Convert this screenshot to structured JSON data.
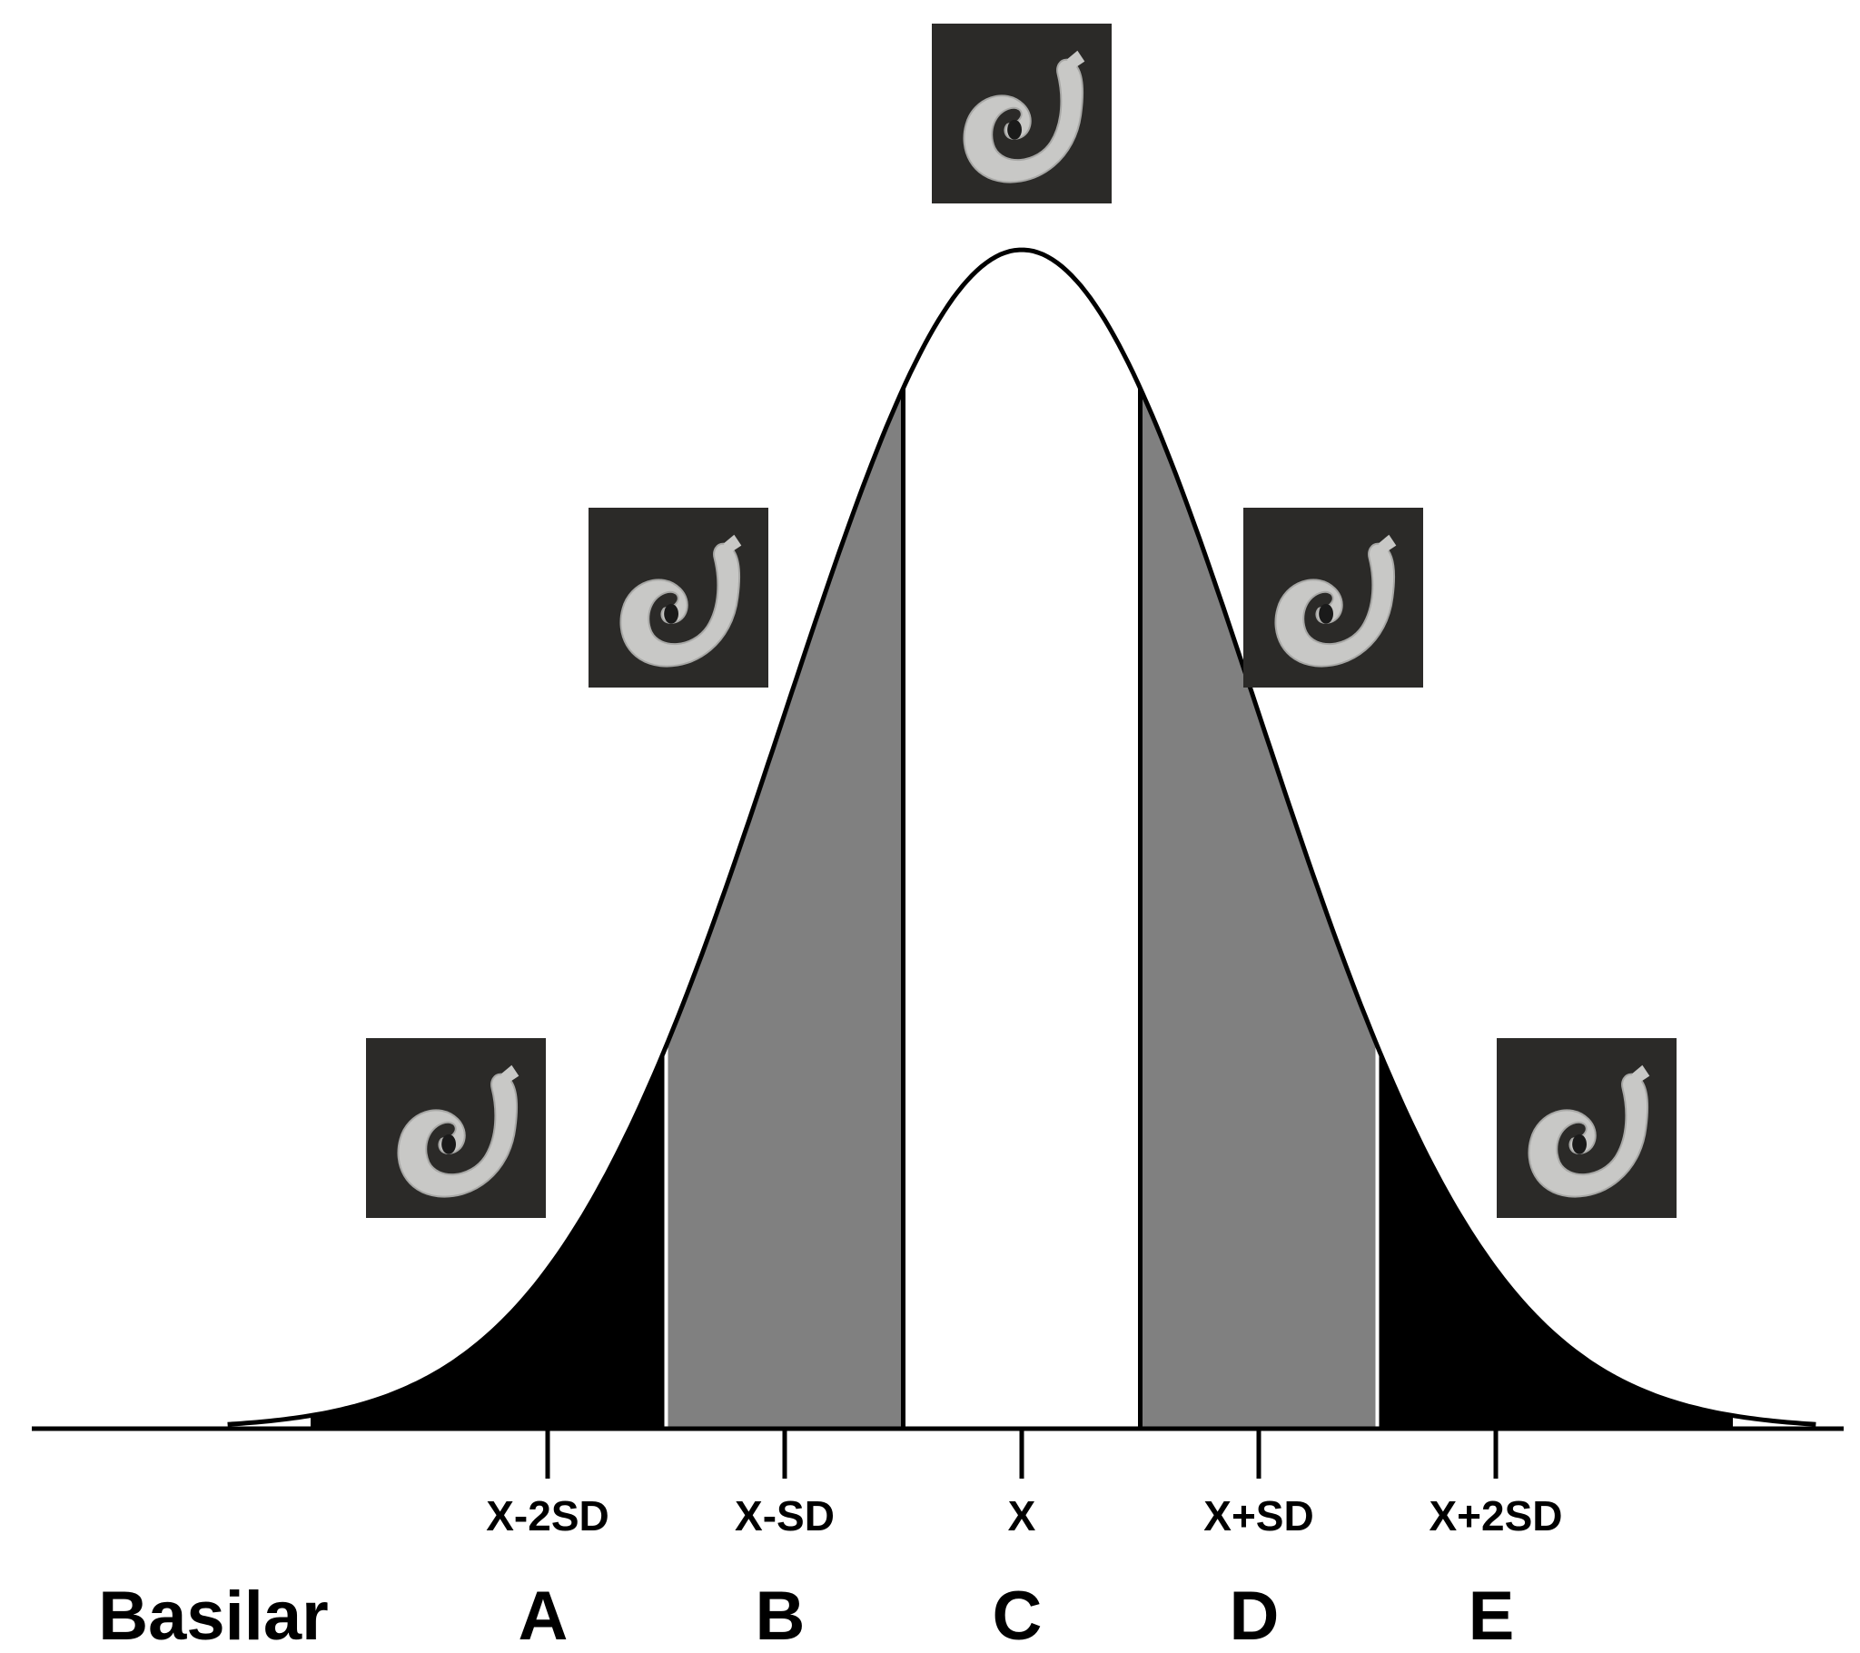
{
  "diagram": {
    "row_label": "Basilar",
    "ticks": [
      {
        "id": "x-minus-2sd",
        "label": "X-2SD",
        "z": -2
      },
      {
        "id": "x-minus-sd",
        "label": "X-SD",
        "z": -1
      },
      {
        "id": "x-mean",
        "label": "X",
        "z": 0
      },
      {
        "id": "x-plus-sd",
        "label": "X+SD",
        "z": 1
      },
      {
        "id": "x-plus-2sd",
        "label": "X+2SD",
        "z": 2
      }
    ],
    "zones": [
      {
        "id": "a",
        "label": "A",
        "z_from": -3,
        "z_to": -1.5,
        "color": "#000000"
      },
      {
        "id": "b",
        "label": "B",
        "z_from": -1.5,
        "z_to": -0.5,
        "color": "#808080"
      },
      {
        "id": "c",
        "label": "C",
        "z_from": -0.5,
        "z_to": 0.5,
        "color": "#ffffff"
      },
      {
        "id": "d",
        "label": "D",
        "z_from": 0.5,
        "z_to": 1.5,
        "color": "#808080"
      },
      {
        "id": "e",
        "label": "E",
        "z_from": 1.5,
        "z_to": 3,
        "color": "#000000"
      }
    ],
    "cochlea_images": [
      {
        "id": "a",
        "icon": "cochlea-spiral-icon"
      },
      {
        "id": "b",
        "icon": "cochlea-spiral-icon"
      },
      {
        "id": "c",
        "icon": "cochlea-spiral-icon"
      },
      {
        "id": "d",
        "icon": "cochlea-spiral-icon"
      },
      {
        "id": "e",
        "icon": "cochlea-spiral-icon"
      }
    ],
    "colors": {
      "tail": "#000000",
      "inner": "#808080",
      "center": "#ffffff",
      "photo_background": "#2b2a28",
      "cochlea": "#c8c8c6"
    }
  }
}
